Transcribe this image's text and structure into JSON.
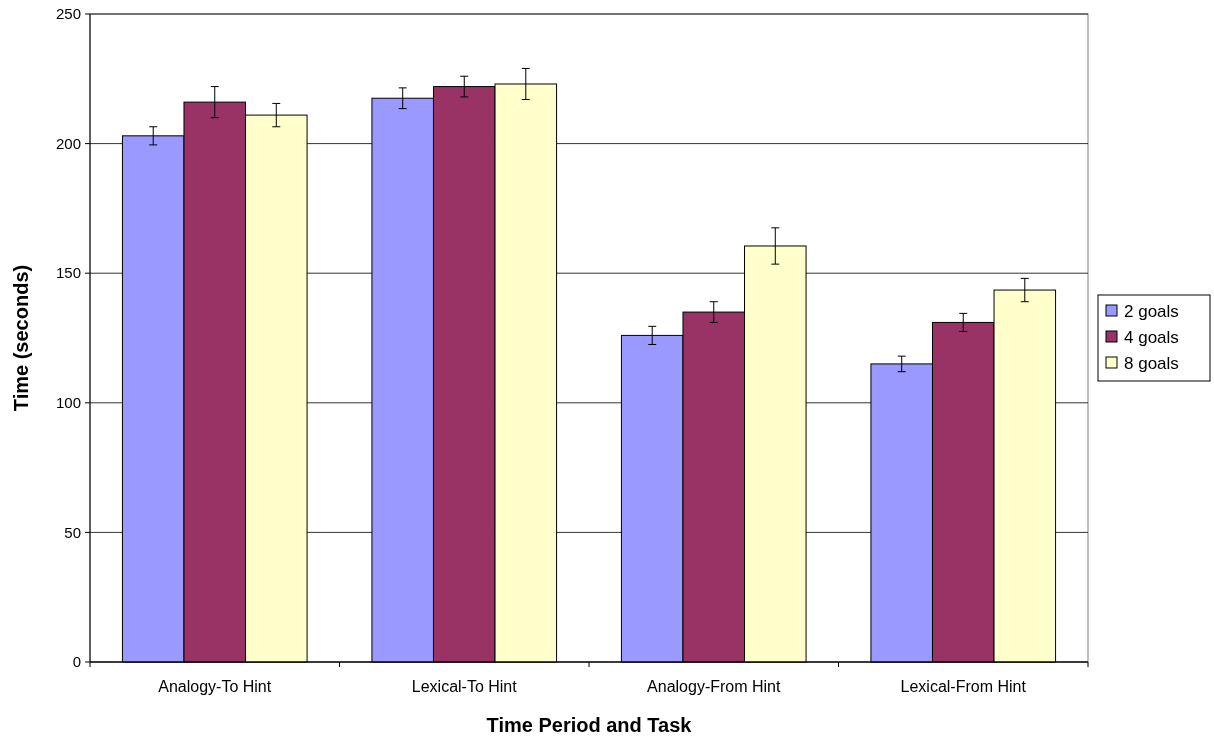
{
  "chart_data": {
    "type": "bar",
    "xlabel": "Time Period and Task",
    "ylabel": "Time (seconds)",
    "categories": [
      "Analogy-To Hint",
      "Lexical-To Hint",
      "Analogy-From Hint",
      "Lexical-From Hint"
    ],
    "series": [
      {
        "name": "2 goals",
        "color": "#9999ff",
        "values": [
          203,
          217.5,
          126,
          115
        ],
        "errors": [
          3.5,
          4,
          3.5,
          3
        ]
      },
      {
        "name": "4 goals",
        "color": "#993366",
        "values": [
          216,
          222,
          135,
          131
        ],
        "errors": [
          6,
          4,
          4,
          3.5
        ]
      },
      {
        "name": "8 goals",
        "color": "#ffffcc",
        "values": [
          211,
          223,
          160.5,
          143.5
        ],
        "errors": [
          4.5,
          6,
          7,
          4.5
        ]
      }
    ],
    "ylim": [
      0,
      250
    ],
    "yticks": [
      0,
      50,
      100,
      150,
      200,
      250
    ],
    "grid": "y",
    "legend": "right"
  }
}
